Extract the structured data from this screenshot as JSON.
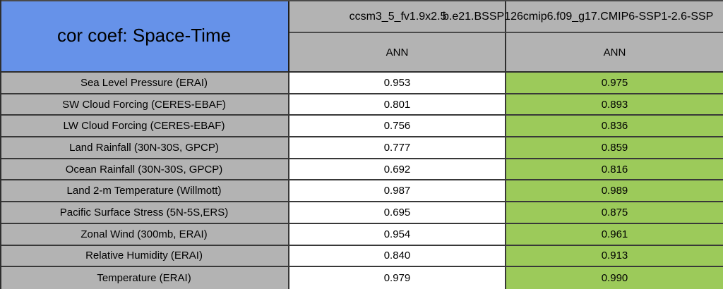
{
  "title": "cor coef: Space-Time",
  "header": {
    "model1": "ccsm3_5_fv1.9x2.5",
    "model2": "b.e21.BSSP126cmip6.f09_g17.CMIP6-SSP1-2.6-SSP",
    "season1": "ANN",
    "season2": "ANN"
  },
  "rows": [
    {
      "label": "Sea Level Pressure (ERAI)",
      "model1": "0.953",
      "model2": "0.975"
    },
    {
      "label": "SW Cloud Forcing (CERES-EBAF)",
      "model1": "0.801",
      "model2": "0.893"
    },
    {
      "label": "LW Cloud Forcing (CERES-EBAF)",
      "model1": "0.756",
      "model2": "0.836"
    },
    {
      "label": "Land Rainfall (30N-30S, GPCP)",
      "model1": "0.777",
      "model2": "0.859"
    },
    {
      "label": "Ocean Rainfall (30N-30S, GPCP)",
      "model1": "0.692",
      "model2": "0.816"
    },
    {
      "label": "Land 2-m Temperature (Willmott)",
      "model1": "0.987",
      "model2": "0.989"
    },
    {
      "label": "Pacific Surface Stress (5N-5S,ERS)",
      "model1": "0.695",
      "model2": "0.875"
    },
    {
      "label": "Zonal Wind (300mb, ERAI)",
      "model1": "0.954",
      "model2": "0.961"
    },
    {
      "label": "Relative Humidity (ERAI)",
      "model1": "0.840",
      "model2": "0.913"
    },
    {
      "label": "Temperature (ERAI)",
      "model1": "0.979",
      "model2": "0.990"
    }
  ],
  "colors": {
    "title_bg": "#6692e9",
    "header_bg": "#b3b3b3",
    "label_bg": "#b3b3b3",
    "value_col1_bg": "#ffffff",
    "value_col2_bg": "#9cca5a",
    "border": "#383838",
    "text": "#000000"
  },
  "chart_data": {
    "type": "table",
    "title": "cor coef: Space-Time",
    "columns": [
      "Variable",
      "ccsm3_5_fv1.9x2.5 (ANN)",
      "b.e21.BSSP126cmip6.f09_g17.CMIP6-SSP1-2.6-SSP (ANN)"
    ],
    "rows": [
      [
        "Sea Level Pressure (ERAI)",
        0.953,
        0.975
      ],
      [
        "SW Cloud Forcing (CERES-EBAF)",
        0.801,
        0.893
      ],
      [
        "LW Cloud Forcing (CERES-EBAF)",
        0.756,
        0.836
      ],
      [
        "Land Rainfall (30N-30S, GPCP)",
        0.777,
        0.859
      ],
      [
        "Ocean Rainfall (30N-30S, GPCP)",
        0.692,
        0.816
      ],
      [
        "Land 2-m Temperature (Willmott)",
        0.987,
        0.989
      ],
      [
        "Pacific Surface Stress (5N-5S,ERS)",
        0.695,
        0.875
      ],
      [
        "Zonal Wind (300mb, ERAI)",
        0.954,
        0.961
      ],
      [
        "Relative Humidity (ERAI)",
        0.84,
        0.913
      ],
      [
        "Temperature (ERAI)",
        0.979,
        0.99
      ]
    ],
    "highlight": "all second-model value cells shaded green",
    "layout": "row labels gray, first value column white, second value column green; second model name overflows its column and is clipped at the right edge"
  }
}
